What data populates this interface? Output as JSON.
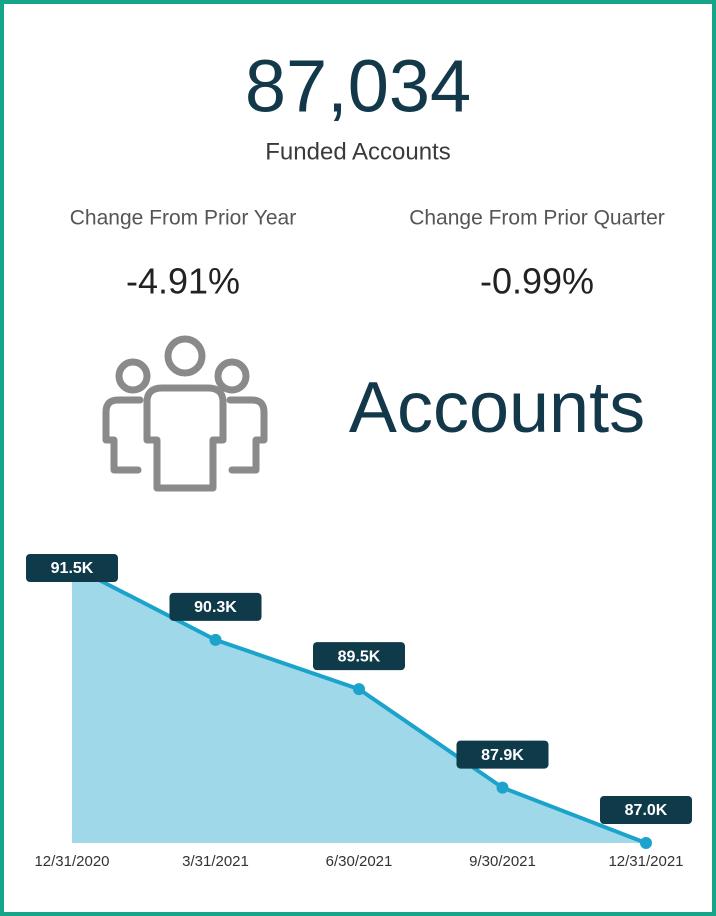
{
  "kpi": {
    "value": "87,034",
    "label": "Funded Accounts"
  },
  "changes": [
    {
      "label": "Change From Prior Year",
      "value": "-4.91%"
    },
    {
      "label": "Change From Prior Quarter",
      "value": "-0.99%"
    }
  ],
  "heading": "Accounts",
  "chart_data": {
    "type": "area",
    "categories": [
      "12/31/2020",
      "3/31/2021",
      "6/30/2021",
      "9/30/2021",
      "12/31/2021"
    ],
    "values": [
      91500,
      90300,
      89500,
      87900,
      87000
    ],
    "value_labels": [
      "91.5K",
      "90.3K",
      "89.5K",
      "87.9K",
      "87.0K"
    ],
    "ylim": [
      87000,
      91500
    ],
    "color": "#1ba3cc",
    "fill": "#9fd9e9",
    "label_color": "#0e3a4a"
  }
}
